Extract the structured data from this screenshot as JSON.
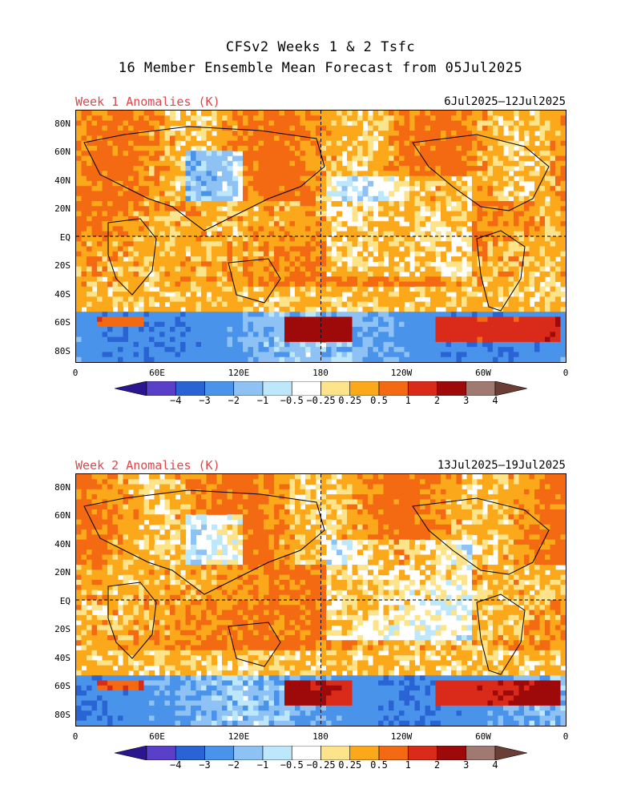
{
  "header": {
    "title_line1": "CFSv2 Weeks 1 & 2 Tsfc",
    "title_line2": "16 Member Ensemble Mean Forecast from 05Jul2025"
  },
  "panels": [
    {
      "label": "Week 1 Anomalies (K)",
      "dates": "6Jul2025—12Jul2025"
    },
    {
      "label": "Week 2 Anomalies (K)",
      "dates": "13Jul2025—19Jul2025"
    }
  ],
  "axes": {
    "lat_ticks": [
      "80N",
      "60N",
      "40N",
      "20N",
      "EQ",
      "20S",
      "40S",
      "60S",
      "80S"
    ],
    "lon_ticks": [
      "0",
      "60E",
      "120E",
      "180",
      "120W",
      "60W",
      "0"
    ]
  },
  "colorbar": {
    "labels": [
      "−4",
      "−3",
      "−2",
      "−1",
      "−0.5",
      "−0.25",
      "0.25",
      "0.5",
      "1",
      "2",
      "3",
      "4"
    ],
    "colors": [
      "#2b1590",
      "#5a3fc8",
      "#2a64d4",
      "#4a93ea",
      "#8ec2f4",
      "#bde7fa",
      "#ffffff",
      "#fde38a",
      "#fba91a",
      "#f46a12",
      "#d92a1a",
      "#9e0a0a",
      "#a07a70",
      "#6a3e34"
    ]
  },
  "palette": {
    "label_red": "#e0454b"
  }
}
